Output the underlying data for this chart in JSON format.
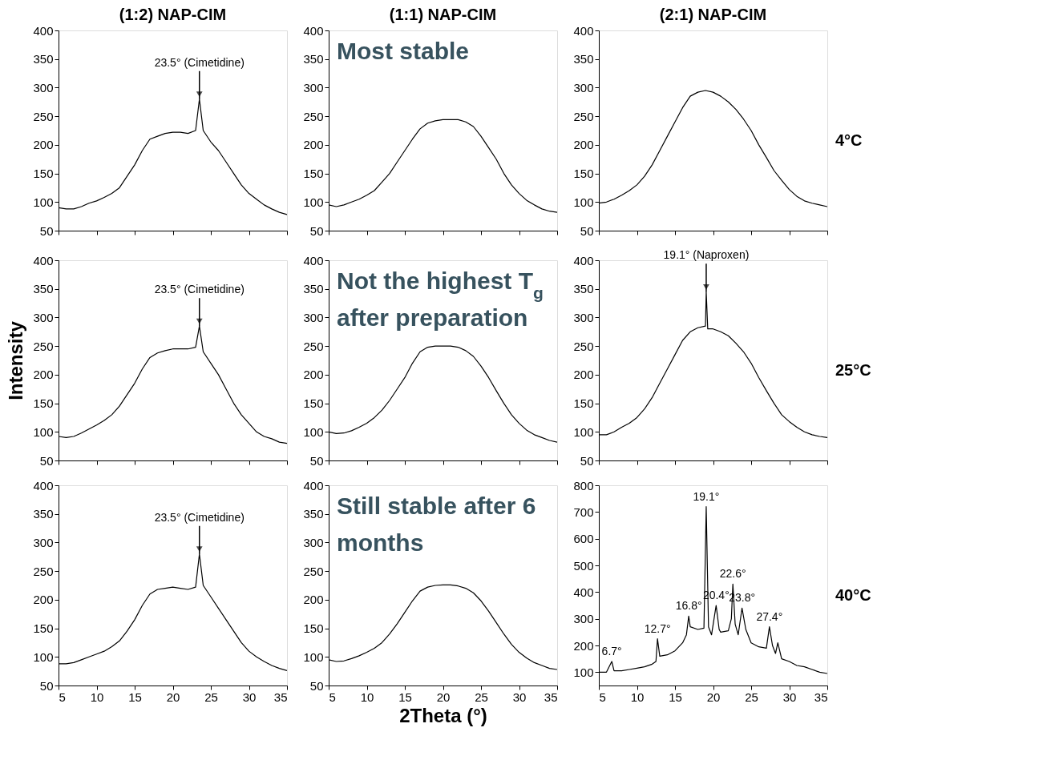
{
  "chart_data": [
    {
      "type": "line",
      "title": "(1:2) NAP-CIM",
      "xlim": [
        5,
        35
      ],
      "xticks": [
        5,
        10,
        15,
        20,
        25,
        30,
        35
      ],
      "ylim": [
        50,
        400
      ],
      "yticks": [
        50,
        100,
        150,
        200,
        250,
        300,
        350,
        400
      ],
      "tick_labels": "y",
      "grid": false,
      "x": [
        5,
        6,
        7,
        8,
        9,
        10,
        11,
        12,
        13,
        14,
        15,
        16,
        17,
        18,
        19,
        20,
        21,
        22,
        23,
        23.5,
        24,
        25,
        26,
        27,
        28,
        29,
        30,
        31,
        32,
        33,
        34,
        35
      ],
      "series": [
        {
          "color": "#000000",
          "values": [
            90,
            88,
            88,
            92,
            98,
            102,
            108,
            115,
            125,
            145,
            165,
            190,
            210,
            215,
            220,
            222,
            222,
            220,
            225,
            280,
            225,
            205,
            190,
            170,
            150,
            130,
            115,
            105,
            95,
            88,
            82,
            78
          ]
        }
      ],
      "annotations": [
        {
          "text": "23.5° (Cimetidine)",
          "x": 23.5,
          "y": 280
        }
      ]
    },
    {
      "type": "line",
      "title": "(1:1) NAP-CIM",
      "xlim": [
        5,
        35
      ],
      "xticks": [
        5,
        10,
        15,
        20,
        25,
        30,
        35
      ],
      "ylim": [
        50,
        400
      ],
      "yticks": [
        50,
        100,
        150,
        200,
        250,
        300,
        350,
        400
      ],
      "tick_labels": "y",
      "grid": false,
      "x": [
        5,
        6,
        7,
        8,
        9,
        10,
        11,
        12,
        13,
        14,
        15,
        16,
        17,
        18,
        19,
        20,
        21,
        22,
        23,
        24,
        25,
        26,
        27,
        28,
        29,
        30,
        31,
        32,
        33,
        34,
        35
      ],
      "series": [
        {
          "color": "#000000",
          "values": [
            95,
            92,
            95,
            100,
            105,
            112,
            120,
            135,
            150,
            170,
            190,
            210,
            228,
            238,
            242,
            244,
            244,
            244,
            240,
            232,
            215,
            195,
            175,
            150,
            130,
            115,
            103,
            95,
            88,
            84,
            82
          ]
        }
      ],
      "annotations": [
        "Most stable"
      ]
    },
    {
      "type": "line",
      "title": "(2:1) NAP-CIM",
      "xlim": [
        5,
        35
      ],
      "xticks": [
        5,
        10,
        15,
        20,
        25,
        30,
        35
      ],
      "ylim": [
        50,
        400
      ],
      "yticks": [
        50,
        100,
        150,
        200,
        250,
        300,
        350,
        400
      ],
      "tick_labels": "y",
      "grid": false,
      "x": [
        5,
        6,
        7,
        8,
        9,
        10,
        11,
        12,
        13,
        14,
        15,
        16,
        17,
        18,
        19,
        20,
        21,
        22,
        23,
        24,
        25,
        26,
        27,
        28,
        29,
        30,
        31,
        32,
        33,
        34,
        35
      ],
      "series": [
        {
          "color": "#000000",
          "values": [
            98,
            100,
            105,
            112,
            120,
            130,
            145,
            165,
            190,
            215,
            240,
            265,
            285,
            292,
            295,
            292,
            285,
            275,
            262,
            245,
            225,
            200,
            178,
            155,
            138,
            122,
            110,
            102,
            98,
            95,
            92
          ]
        }
      ],
      "annotations": [
        "4°C"
      ]
    },
    {
      "type": "line",
      "ylabel": "Intensity",
      "xlim": [
        5,
        35
      ],
      "xticks": [
        5,
        10,
        15,
        20,
        25,
        30,
        35
      ],
      "ylim": [
        50,
        400
      ],
      "yticks": [
        50,
        100,
        150,
        200,
        250,
        300,
        350,
        400
      ],
      "tick_labels": "y",
      "grid": false,
      "x": [
        5,
        6,
        7,
        8,
        9,
        10,
        11,
        12,
        13,
        14,
        15,
        16,
        17,
        18,
        19,
        20,
        21,
        22,
        23,
        23.5,
        24,
        25,
        26,
        27,
        28,
        29,
        30,
        31,
        32,
        33,
        34,
        35
      ],
      "series": [
        {
          "color": "#000000",
          "values": [
            92,
            90,
            92,
            98,
            105,
            112,
            120,
            130,
            145,
            165,
            185,
            210,
            230,
            238,
            242,
            245,
            245,
            245,
            248,
            285,
            240,
            220,
            200,
            175,
            150,
            130,
            115,
            100,
            92,
            88,
            82,
            80
          ]
        }
      ],
      "annotations": [
        {
          "text": "23.5° (Cimetidine)",
          "x": 23.5,
          "y": 285
        }
      ]
    },
    {
      "type": "line",
      "xlim": [
        5,
        35
      ],
      "xticks": [
        5,
        10,
        15,
        20,
        25,
        30,
        35
      ],
      "ylim": [
        50,
        400
      ],
      "yticks": [
        50,
        100,
        150,
        200,
        250,
        300,
        350,
        400
      ],
      "tick_labels": "y",
      "grid": false,
      "x": [
        5,
        6,
        7,
        8,
        9,
        10,
        11,
        12,
        13,
        14,
        15,
        16,
        17,
        18,
        19,
        20,
        21,
        22,
        23,
        24,
        25,
        26,
        27,
        28,
        29,
        30,
        31,
        32,
        33,
        34,
        35
      ],
      "series": [
        {
          "color": "#000000",
          "values": [
            100,
            97,
            98,
            102,
            108,
            115,
            125,
            138,
            155,
            175,
            195,
            220,
            240,
            248,
            250,
            250,
            250,
            248,
            242,
            232,
            215,
            195,
            172,
            150,
            130,
            115,
            103,
            95,
            90,
            85,
            82
          ]
        }
      ],
      "annotations": [
        "Not the highest T$_{g}$",
        "after preparation"
      ]
    },
    {
      "type": "line",
      "xlim": [
        5,
        35
      ],
      "xticks": [
        5,
        10,
        15,
        20,
        25,
        30,
        35
      ],
      "ylim": [
        50,
        400
      ],
      "yticks": [
        50,
        100,
        150,
        200,
        250,
        300,
        350,
        400
      ],
      "tick_labels": "y",
      "grid": false,
      "x": [
        5,
        6,
        7,
        8,
        9,
        10,
        11,
        12,
        13,
        14,
        15,
        16,
        17,
        18,
        19,
        19.1,
        19.3,
        20,
        21,
        22,
        23,
        24,
        25,
        26,
        27,
        28,
        29,
        30,
        31,
        32,
        33,
        34,
        35
      ],
      "series": [
        {
          "color": "#000000",
          "values": [
            95,
            95,
            100,
            108,
            115,
            125,
            140,
            160,
            185,
            210,
            235,
            260,
            275,
            282,
            285,
            345,
            280,
            280,
            275,
            268,
            255,
            240,
            220,
            195,
            172,
            150,
            130,
            118,
            108,
            100,
            95,
            92,
            90
          ]
        }
      ],
      "annotations": [
        {
          "text": "19.1° (Naproxen)",
          "x": 19.1,
          "y": 345
        },
        "25°C"
      ]
    },
    {
      "type": "line",
      "xlim": [
        5,
        35
      ],
      "xticks": [
        5,
        10,
        15,
        20,
        25,
        30,
        35
      ],
      "ylim": [
        50,
        400
      ],
      "yticks": [
        50,
        100,
        150,
        200,
        250,
        300,
        350,
        400
      ],
      "grid": false,
      "x": [
        5,
        6,
        7,
        8,
        9,
        10,
        11,
        12,
        13,
        14,
        15,
        16,
        17,
        18,
        19,
        20,
        21,
        22,
        23,
        23.5,
        24,
        25,
        26,
        27,
        28,
        29,
        30,
        31,
        32,
        33,
        34,
        35
      ],
      "series": [
        {
          "color": "#000000",
          "values": [
            88,
            88,
            90,
            95,
            100,
            105,
            110,
            118,
            128,
            145,
            165,
            190,
            210,
            218,
            220,
            222,
            220,
            218,
            222,
            280,
            225,
            205,
            185,
            165,
            145,
            125,
            110,
            100,
            92,
            85,
            80,
            76
          ]
        }
      ],
      "annotations": [
        {
          "text": "23.5° (Cimetidine)",
          "x": 23.5,
          "y": 280
        }
      ]
    },
    {
      "type": "line",
      "xlabel": "2Theta (°)",
      "xlim": [
        5,
        35
      ],
      "xticks": [
        5,
        10,
        15,
        20,
        25,
        30,
        35
      ],
      "ylim": [
        50,
        400
      ],
      "yticks": [
        50,
        100,
        150,
        200,
        250,
        300,
        350,
        400
      ],
      "grid": false,
      "x": [
        5,
        6,
        7,
        8,
        9,
        10,
        11,
        12,
        13,
        14,
        15,
        16,
        17,
        18,
        19,
        20,
        21,
        22,
        23,
        24,
        25,
        26,
        27,
        28,
        29,
        30,
        31,
        32,
        33,
        34,
        35
      ],
      "series": [
        {
          "color": "#000000",
          "values": [
            95,
            92,
            93,
            97,
            102,
            108,
            115,
            125,
            140,
            158,
            178,
            198,
            215,
            222,
            225,
            226,
            226,
            224,
            220,
            212,
            198,
            180,
            160,
            140,
            122,
            108,
            98,
            90,
            85,
            80,
            78
          ]
        }
      ],
      "annotations": [
        "Still stable after 6",
        "months"
      ]
    },
    {
      "type": "line",
      "xlim": [
        5,
        35
      ],
      "xticks": [
        5,
        10,
        15,
        20,
        25,
        30,
        35
      ],
      "ylim": [
        50,
        800
      ],
      "yticks": [
        100,
        200,
        300,
        400,
        500,
        600,
        700,
        800
      ],
      "grid": false,
      "x": [
        5,
        6,
        6.7,
        7,
        8,
        9,
        10,
        11,
        12,
        12.5,
        12.7,
        13,
        14,
        15,
        16,
        16.5,
        16.8,
        17,
        18,
        18.8,
        19.1,
        19.4,
        19.8,
        20.4,
        20.8,
        21,
        22,
        22.4,
        22.6,
        22.9,
        23.3,
        23.8,
        24.3,
        25,
        26,
        27,
        27.4,
        27.8,
        28.2,
        28.5,
        29,
        30,
        31,
        32,
        33,
        34,
        35
      ],
      "series": [
        {
          "color": "#000000",
          "values": [
            100,
            100,
            140,
            105,
            105,
            110,
            115,
            120,
            130,
            140,
            225,
            160,
            165,
            180,
            210,
            240,
            310,
            270,
            260,
            265,
            720,
            270,
            240,
            350,
            260,
            250,
            255,
            300,
            430,
            280,
            240,
            340,
            260,
            210,
            195,
            190,
            270,
            200,
            170,
            210,
            150,
            140,
            125,
            120,
            110,
            100,
            95
          ]
        }
      ],
      "annotations": [
        {
          "text": "6.7°",
          "x": 6.7,
          "y": 140
        },
        {
          "text": "12.7°",
          "x": 12.7,
          "y": 225
        },
        {
          "text": "16.8°",
          "x": 16.8,
          "y": 310
        },
        {
          "text": "19.1°",
          "x": 19.1,
          "y": 720
        },
        {
          "text": "20.4°",
          "x": 20.4,
          "y": 350
        },
        {
          "text": "22.6°",
          "x": 22.6,
          "y": 430
        },
        {
          "text": "23.8°",
          "x": 23.8,
          "y": 340
        },
        {
          "text": "27.4°",
          "x": 27.4,
          "y": 270
        },
        "40°C"
      ]
    }
  ]
}
